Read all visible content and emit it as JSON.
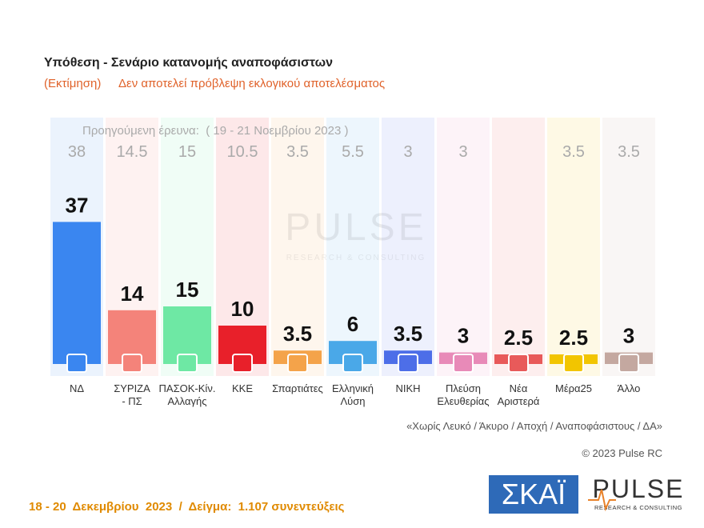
{
  "chart_data": {
    "type": "bar",
    "title": "Υπόθεση - Σενάριο κατανομής αναποφάσιστων",
    "subtitle": [
      "(Εκτίμηση)",
      "Δεν αποτελεί πρόβλεψη εκλογικού αποτελέσματος"
    ],
    "previous_label": "Προηγούμενη έρευνα:  ( 19 - 21 Νοεμβρίου 2023 )",
    "categories": [
      "ΝΔ",
      "ΣΥΡΙΖΑ\n- ΠΣ",
      "ΠΑΣΟΚ-Κίν.\nΑλλαγής",
      "ΚΚΕ",
      "Σπαρτιάτες",
      "Ελληνική\nΛύση",
      "ΝΙΚΗ",
      "Πλεύση\nΕλευθερίας",
      "Νέα\nΑριστερά",
      "Μέρα25",
      "Άλλο"
    ],
    "values": [
      37,
      14,
      15,
      10,
      3.5,
      6,
      3.5,
      3,
      2.5,
      2.5,
      3
    ],
    "previous_values": [
      38,
      14.5,
      15,
      10.5,
      3.5,
      5.5,
      3,
      3,
      null,
      3.5,
      3.5
    ],
    "colors": [
      "#3a86f0",
      "#f4837a",
      "#6ee8a4",
      "#e8202a",
      "#f4a34a",
      "#4aa8e8",
      "#4d6ee8",
      "#e88ab8",
      "#e85a5a",
      "#f2c500",
      "#c4a8a0"
    ],
    "ylim": [
      0,
      40
    ],
    "footnote": "«Χωρίς Λευκό / Άκυρο / Αποχή / Αναποφάσιστους / ΔΑ»",
    "copyright": "© 2023 Pulse RC",
    "survey_info": "18 - 20  Δεκεμβρίου  2023  /  Δείγμα:  1.107 συνεντεύξεις",
    "logos": {
      "skai": "ΣΚΑΪ",
      "pulse": "PULSE",
      "pulse_tagline": "RESEARCH & CONSULTING"
    }
  }
}
